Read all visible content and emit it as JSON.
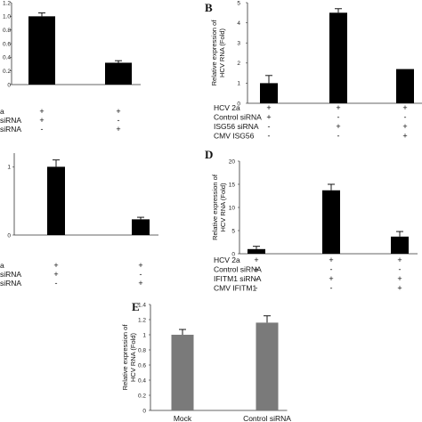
{
  "chart_data": [
    {
      "panel": "",
      "type": "bar",
      "ylim": [
        0,
        1.2
      ],
      "yticks": [
        "0",
        "0.2",
        "0.4",
        "0.6",
        "0.8",
        "1.0",
        "1.2"
      ],
      "ylabel": "",
      "values": [
        1.0,
        0.32
      ],
      "errors": [
        0.05,
        0.03
      ],
      "bar_color": "#000000",
      "rows": [
        {
          "label": "a",
          "signs": [
            "+",
            "+"
          ]
        },
        {
          "label": "siRNA",
          "signs": [
            "+",
            "-"
          ]
        },
        {
          "label": "siRNA",
          "signs": [
            "-",
            "+"
          ]
        }
      ]
    },
    {
      "panel": "B",
      "type": "bar",
      "ylim": [
        0,
        5
      ],
      "yticks": [
        "0",
        "1",
        "2",
        "3",
        "4",
        "5"
      ],
      "ylabel": "Relative expression of HCV RNA (Fold)",
      "values": [
        1.0,
        4.5,
        1.7
      ],
      "errors": [
        0.38,
        0.2,
        0.0
      ],
      "bar_color": "#000000",
      "rows": [
        {
          "label": "HCV 2a",
          "signs": [
            "+",
            "+",
            "+"
          ]
        },
        {
          "label": "Control siRNA",
          "signs": [
            "+",
            "-",
            "-"
          ]
        },
        {
          "label": "ISG56 siRNA",
          "signs": [
            "-",
            "+",
            "+"
          ]
        },
        {
          "label": "CMV ISG56",
          "signs": [
            "-",
            "-",
            "+"
          ]
        }
      ]
    },
    {
      "panel": "",
      "type": "bar",
      "ylim": [
        0,
        1.2
      ],
      "yticks": [
        "0",
        "1"
      ],
      "ylabel": "",
      "values": [
        1.0,
        0.23
      ],
      "errors": [
        0.1,
        0.03
      ],
      "bar_color": "#000000",
      "rows": [
        {
          "label": "a",
          "signs": [
            "+",
            "+"
          ]
        },
        {
          "label": "siRNA",
          "signs": [
            "+",
            "-"
          ]
        },
        {
          "label": "siRNA",
          "signs": [
            "-",
            "+"
          ]
        }
      ]
    },
    {
      "panel": "D",
      "type": "bar",
      "ylim": [
        0,
        20
      ],
      "yticks": [
        "0",
        "5",
        "10",
        "15",
        "20"
      ],
      "ylabel": "Relative expression of HCV RNA (Fold)",
      "values": [
        1.0,
        13.7,
        3.7
      ],
      "errors": [
        0.6,
        1.3,
        1.1
      ],
      "bar_color": "#000000",
      "rows": [
        {
          "label": "HCV 2a",
          "signs": [
            "+",
            "+",
            "+"
          ]
        },
        {
          "label": "Control siRNA",
          "signs": [
            "+",
            "-",
            "-"
          ]
        },
        {
          "label": "IFITM1 siRNA",
          "signs": [
            "-",
            "+",
            "+"
          ]
        },
        {
          "label": "CMV IFITM1",
          "signs": [
            "-",
            "-",
            "+"
          ]
        }
      ]
    },
    {
      "panel": "E",
      "type": "bar",
      "ylim": [
        0,
        1.4
      ],
      "yticks": [
        "0",
        "0.2",
        "0.4",
        "0.6",
        "0.8",
        "1",
        "1.2",
        "1.4"
      ],
      "ylabel": "Relative expression of HCV RNA (Fold)",
      "categories": [
        "Mock",
        "Control siRNA"
      ],
      "values": [
        1.0,
        1.16
      ],
      "errors": [
        0.07,
        0.09
      ],
      "bar_color": "#7a7a7a"
    }
  ]
}
